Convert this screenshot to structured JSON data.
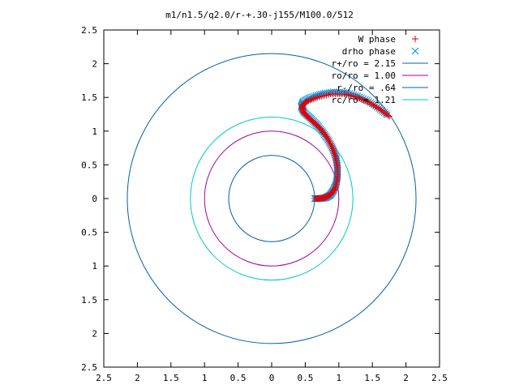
{
  "chart_data": {
    "type": "scatter",
    "title": "m1/n1.5/q2.0/r-+.30-j155/M100.0/512",
    "xlabel": "",
    "ylabel": "",
    "xlim": [
      -2.5,
      2.5
    ],
    "ylim": [
      -2.5,
      2.5
    ],
    "grid": false,
    "legend_position": "top-right",
    "x_ticks": [
      "2.5",
      "2",
      "1.5",
      "1",
      "0.5",
      "0",
      "0.5",
      "1",
      "1.5",
      "2",
      "2.5"
    ],
    "y_ticks": [
      "2.5",
      "2",
      "1.5",
      "1",
      "0.5",
      "0",
      "0.5",
      "1",
      "1.5",
      "2",
      "2.5"
    ],
    "circles": [
      {
        "label": "r+/ro = 2.15",
        "radius": 2.15,
        "color": "#0060ad"
      },
      {
        "label": "ro/ro = 1.00",
        "radius": 1.0,
        "color": "#a000a0"
      },
      {
        "label": "r-/ro = .64",
        "radius": 0.64,
        "color": "#0060ad"
      },
      {
        "label": "rc/ro = 1.21",
        "radius": 1.21,
        "color": "#00c8c8"
      }
    ],
    "series": [
      {
        "name": "W phase",
        "marker": "+",
        "color": "#e00000",
        "points": [
          [
            0.64,
            0.0
          ],
          [
            0.72,
            0.0
          ],
          [
            0.8,
            0.02
          ],
          [
            0.88,
            0.06
          ],
          [
            0.95,
            0.16
          ],
          [
            0.98,
            0.3
          ],
          [
            0.98,
            0.46
          ],
          [
            0.95,
            0.62
          ],
          [
            0.9,
            0.76
          ],
          [
            0.83,
            0.9
          ],
          [
            0.74,
            1.02
          ],
          [
            0.64,
            1.12
          ],
          [
            0.55,
            1.2
          ],
          [
            0.47,
            1.28
          ],
          [
            0.45,
            1.37
          ],
          [
            0.52,
            1.44
          ],
          [
            0.68,
            1.5
          ],
          [
            0.88,
            1.55
          ],
          [
            1.08,
            1.55
          ],
          [
            1.28,
            1.5
          ],
          [
            1.46,
            1.42
          ],
          [
            1.62,
            1.32
          ],
          [
            1.75,
            1.22
          ]
        ]
      },
      {
        "name": "drho phase",
        "marker": "x",
        "color": "#0090e0",
        "points": [
          [
            0.64,
            0.0
          ],
          [
            0.72,
            0.0
          ],
          [
            0.8,
            0.01
          ],
          [
            0.87,
            0.05
          ],
          [
            0.92,
            0.12
          ],
          [
            0.96,
            0.22
          ],
          [
            0.98,
            0.34
          ],
          [
            0.98,
            0.47
          ],
          [
            0.96,
            0.6
          ],
          [
            0.91,
            0.74
          ],
          [
            0.84,
            0.87
          ],
          [
            0.76,
            0.99
          ],
          [
            0.67,
            1.1
          ],
          [
            0.58,
            1.19
          ],
          [
            0.49,
            1.27
          ],
          [
            0.44,
            1.36
          ],
          [
            0.47,
            1.44
          ],
          [
            0.58,
            1.5
          ],
          [
            0.74,
            1.55
          ],
          [
            0.92,
            1.58
          ],
          [
            1.1,
            1.57
          ],
          [
            1.28,
            1.52
          ],
          [
            1.45,
            1.44
          ],
          [
            1.6,
            1.34
          ],
          [
            1.72,
            1.24
          ]
        ]
      }
    ]
  }
}
